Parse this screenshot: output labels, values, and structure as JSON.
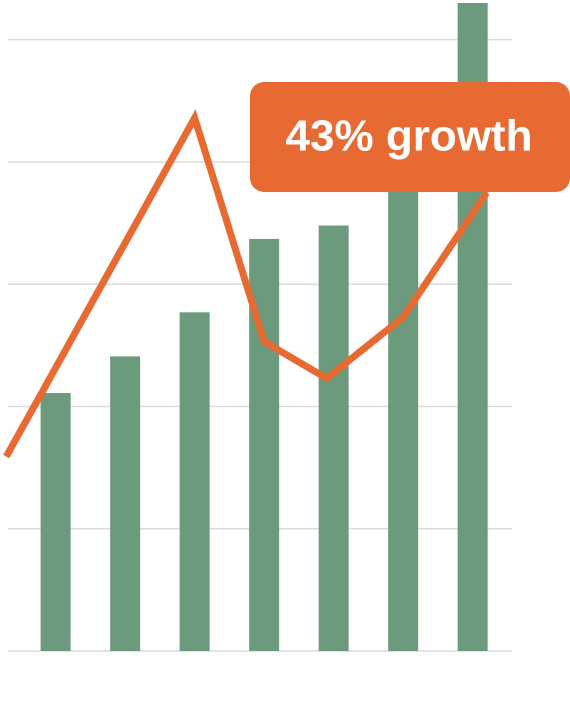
{
  "chart_data": {
    "type": "bar-line",
    "x": [
      1,
      2,
      3,
      4,
      5,
      6,
      7
    ],
    "values": [
      2.11,
      2.41,
      2.77,
      3.37,
      3.48,
      3.87,
      5.3
    ],
    "color": "#6b9a7c",
    "line": {
      "color": "#e86a33",
      "x": [
        0.29,
        3.0,
        4.0,
        4.9,
        6.0,
        7.2
      ],
      "values": [
        1.59,
        4.36,
        2.53,
        2.23,
        2.73,
        3.75
      ]
    },
    "xlim": [
      0.2,
      8.4
    ],
    "ylim": [
      0,
      5.3
    ],
    "yticks": [
      0,
      1,
      2,
      3,
      4,
      5
    ],
    "grid": true,
    "annotation": {
      "text": "43% growth",
      "color": "#e86a33"
    }
  }
}
